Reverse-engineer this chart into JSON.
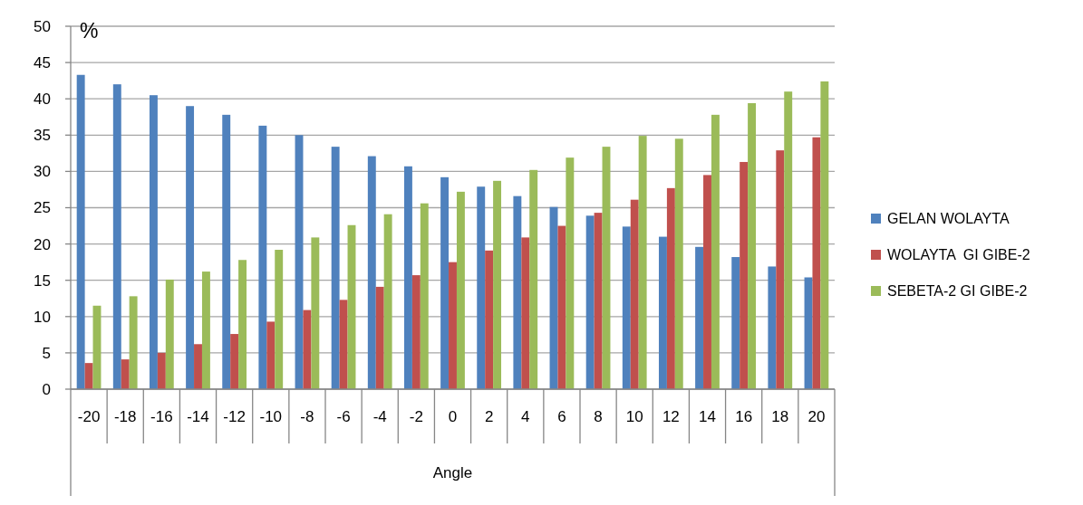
{
  "chart_data": {
    "type": "bar",
    "xlabel": "Angle",
    "ylabel": "%",
    "categories": [
      "-20",
      "-18",
      "-16",
      "-14",
      "-12",
      "-10",
      "-8",
      "-6",
      "-4",
      "-2",
      "0",
      "2",
      "4",
      "6",
      "8",
      "10",
      "12",
      "14",
      "16",
      "18",
      "20"
    ],
    "series": [
      {
        "name": "GELAN WOLAYTA",
        "color": "#4f81bd",
        "values": [
          43.3,
          42.0,
          40.5,
          39.0,
          37.8,
          36.3,
          35.0,
          33.4,
          32.1,
          30.7,
          29.2,
          27.9,
          26.6,
          25.1,
          23.9,
          22.4,
          21.0,
          19.6,
          18.2,
          16.9,
          15.4
        ]
      },
      {
        "name": "WOLAYTA  GI GIBE-2",
        "color": "#c0504d",
        "values": [
          3.6,
          4.1,
          5.0,
          6.2,
          7.6,
          9.3,
          10.9,
          12.3,
          14.1,
          15.7,
          17.5,
          19.1,
          20.9,
          22.5,
          24.3,
          26.1,
          27.7,
          29.5,
          31.3,
          32.9,
          34.7
        ]
      },
      {
        "name": "SEBETA-2 GI GIBE-2",
        "color": "#9bbb59",
        "values": [
          11.5,
          12.8,
          15.1,
          16.2,
          17.8,
          19.2,
          20.9,
          22.6,
          24.1,
          25.6,
          27.2,
          28.7,
          30.2,
          31.9,
          33.4,
          34.9,
          34.5,
          37.8,
          39.4,
          41.0,
          42.4
        ]
      }
    ],
    "ylim": [
      0,
      50
    ],
    "yticks": [
      0,
      5,
      10,
      15,
      20,
      25,
      30,
      35,
      40,
      45,
      50
    ],
    "grid": "y",
    "legend": "right"
  }
}
